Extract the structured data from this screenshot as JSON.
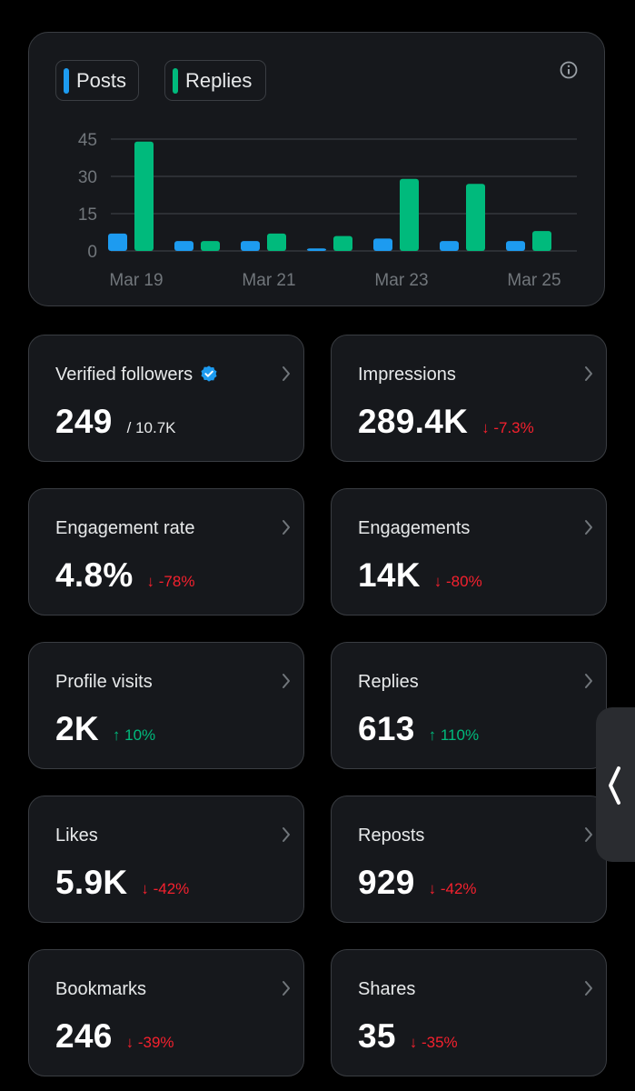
{
  "legend": {
    "posts": {
      "label": "Posts",
      "color": "#1d9bf0"
    },
    "replies": {
      "label": "Replies",
      "color": "#00ba7c"
    }
  },
  "info_icon": "info-icon",
  "chart_data": {
    "type": "bar",
    "categories": [
      "Mar 19",
      "Mar 20",
      "Mar 21",
      "Mar 22",
      "Mar 23",
      "Mar 24",
      "Mar 25"
    ],
    "x_tick_labels": [
      "Mar 19",
      "Mar 21",
      "Mar 23",
      "Mar 25"
    ],
    "y_ticks": [
      "45",
      "30",
      "15",
      "0"
    ],
    "ylim": [
      0,
      45
    ],
    "grid": true,
    "series": [
      {
        "name": "Posts",
        "color": "#1d9bf0",
        "values": [
          7,
          4,
          4,
          1,
          5,
          4,
          4
        ]
      },
      {
        "name": "Replies",
        "color": "#00ba7c",
        "values": [
          44,
          4,
          7,
          6,
          29,
          27,
          8
        ]
      }
    ]
  },
  "stats": [
    {
      "label": "Verified followers",
      "value": "249",
      "sub": "/ 10.7K",
      "verified": true
    },
    {
      "label": "Impressions",
      "value": "289.4K",
      "delta": "↓ -7.3%",
      "direction": "down"
    },
    {
      "label": "Engagement rate",
      "value": "4.8%",
      "delta": "↓ -78%",
      "direction": "down"
    },
    {
      "label": "Engagements",
      "value": "14K",
      "delta": "↓ -80%",
      "direction": "down"
    },
    {
      "label": "Profile visits",
      "value": "2K",
      "delta": "↑ 10%",
      "direction": "up"
    },
    {
      "label": "Replies",
      "value": "613",
      "delta": "↑ 110%",
      "direction": "up"
    },
    {
      "label": "Likes",
      "value": "5.9K",
      "delta": "↓ -42%",
      "direction": "down"
    },
    {
      "label": "Reposts",
      "value": "929",
      "delta": "↓ -42%",
      "direction": "down"
    },
    {
      "label": "Bookmarks",
      "value": "246",
      "delta": "↓ -39%",
      "direction": "down"
    },
    {
      "label": "Shares",
      "value": "35",
      "delta": "↓ -35%",
      "direction": "down"
    }
  ],
  "side_tab_icon": "chevron-left-icon"
}
